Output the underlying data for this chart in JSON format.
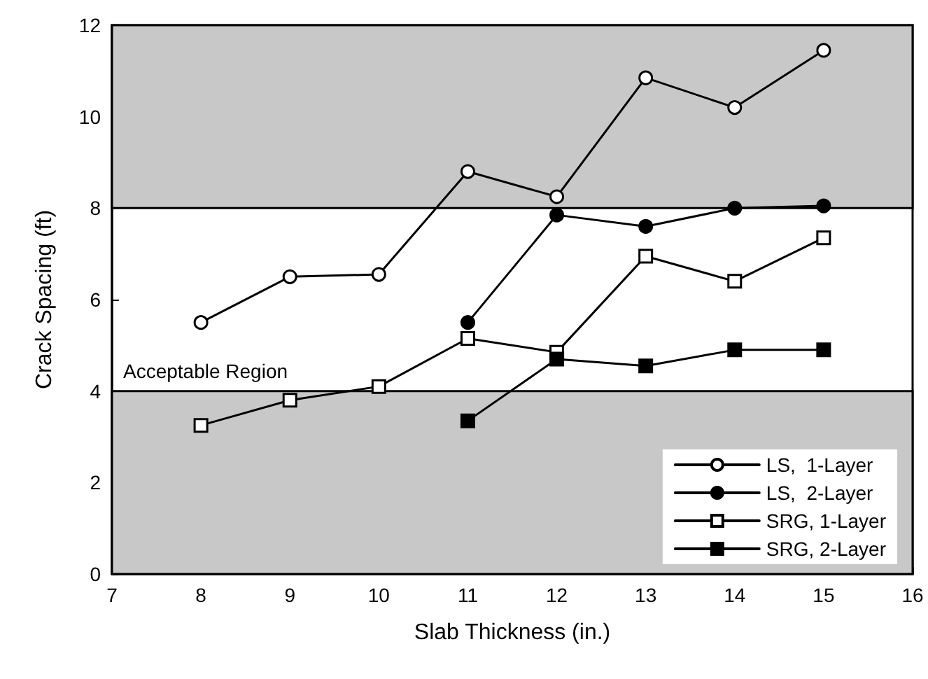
{
  "chart_data": {
    "type": "line",
    "xlabel": "Slab Thickness (in.)",
    "ylabel": "Crack Spacing (ft)",
    "xlim": [
      7,
      16
    ],
    "xticks": [
      7,
      8,
      9,
      10,
      11,
      12,
      13,
      14,
      15,
      16
    ],
    "ylim": [
      0,
      12
    ],
    "yticks": [
      0,
      2,
      4,
      6,
      8,
      10,
      12
    ],
    "grid": false,
    "legend": "bottom right",
    "line_style": "solid",
    "bands": [
      {
        "axis": "y",
        "from": 0,
        "to": 4,
        "color": "#c8c8c8"
      },
      {
        "axis": "y",
        "from": 8,
        "to": 12,
        "color": "#c8c8c8"
      }
    ],
    "annotations": [
      "Acceptable Region"
    ],
    "series": [
      {
        "name": "LS,  1-Layer",
        "color": "#000000",
        "marker": "circle",
        "x": [
          8,
          9,
          10,
          11,
          12,
          13,
          14,
          15
        ],
        "values": [
          5.5,
          6.5,
          6.55,
          8.8,
          8.25,
          10.85,
          10.2,
          11.45
        ]
      },
      {
        "name": "LS,  2-Layer",
        "color": "#000000",
        "marker": "circle",
        "x": [
          11,
          12,
          13,
          14,
          15
        ],
        "values": [
          5.5,
          7.85,
          7.6,
          8.0,
          8.05
        ]
      },
      {
        "name": "SRG, 1-Layer",
        "color": "#000000",
        "marker": "square",
        "x": [
          8,
          9,
          10,
          11,
          12,
          13,
          14,
          15
        ],
        "values": [
          3.25,
          3.8,
          4.1,
          5.15,
          4.85,
          6.95,
          6.4,
          7.35
        ]
      },
      {
        "name": "SRG, 2-Layer",
        "color": "#000000",
        "marker": "square",
        "x": [
          11,
          12,
          13,
          14,
          15
        ],
        "values": [
          3.35,
          4.7,
          4.55,
          4.9,
          4.9
        ]
      }
    ]
  }
}
